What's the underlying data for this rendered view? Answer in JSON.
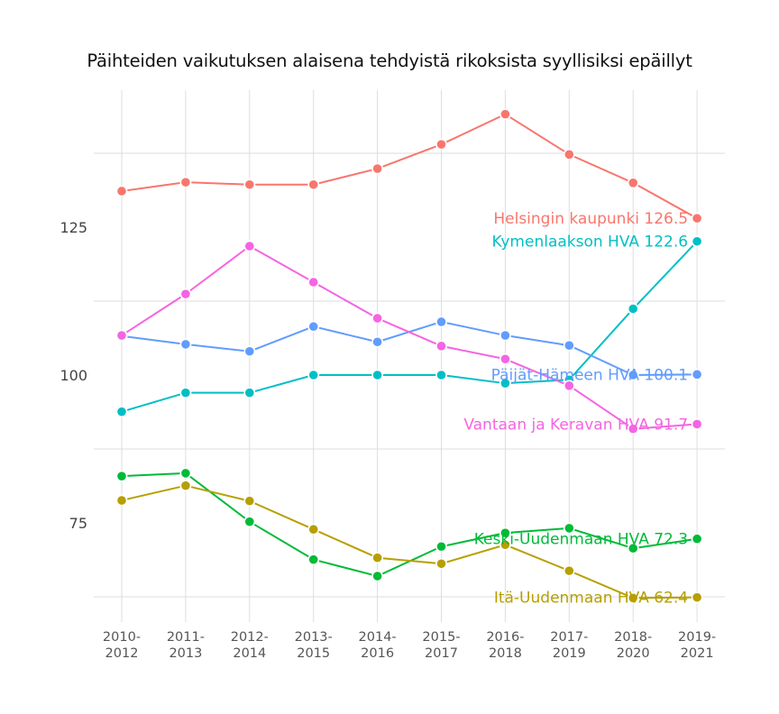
{
  "chart_data": {
    "type": "line",
    "title": "Päihteiden vaikutuksen alaisena tehdyistä rikoksista syyllisiksi epäillyt",
    "xlabel": "",
    "ylabel": "",
    "categories": [
      "2010-2012",
      "2011-2013",
      "2012-2014",
      "2013-2015",
      "2014-2016",
      "2015-2017",
      "2016-2018",
      "2017-2019",
      "2018-2020",
      "2019-2021"
    ],
    "x_tick_labels": [
      [
        "2010-",
        "2012"
      ],
      [
        "2011-",
        "2013"
      ],
      [
        "2012-",
        "2014"
      ],
      [
        "2013-",
        "2015"
      ],
      [
        "2014-",
        "2016"
      ],
      [
        "2015-",
        "2017"
      ],
      [
        "2016-",
        "2018"
      ],
      [
        "2017-",
        "2019"
      ],
      [
        "2018-",
        "2020"
      ],
      [
        "2019-",
        "2021"
      ]
    ],
    "y_ticks": [
      75,
      100,
      125
    ],
    "y_gridlines": [
      62.5,
      87.5,
      112.5,
      137.5
    ],
    "ylim": [
      59,
      150
    ],
    "grid": true,
    "legend_position": "direct labels at line ends",
    "series": [
      {
        "name": "Helsingin kaupunki",
        "color": "#F8766D",
        "end_label": "Helsingin kaupunki 126.5",
        "values": [
          131.1,
          132.6,
          132.2,
          132.2,
          134.9,
          139.0,
          144.1,
          137.3,
          132.5,
          126.5
        ]
      },
      {
        "name": "Kymenlaakson HVA",
        "color": "#00BFC4",
        "end_label": "Kymenlaakson HVA 122.6",
        "values": [
          93.8,
          97.0,
          97.0,
          100.0,
          100.0,
          100.0,
          98.6,
          99.2,
          111.2,
          122.6
        ]
      },
      {
        "name": "Päijät-Hämeen HVA",
        "color": "#619CFF",
        "end_label": "Päijät-Hämeen HVA 100.1",
        "values": [
          106.6,
          105.2,
          104.0,
          108.2,
          105.6,
          109.0,
          106.7,
          105.0,
          100.0,
          100.1
        ]
      },
      {
        "name": "Vantaan ja Keravan HVA",
        "color": "#F564E3",
        "end_label": "Vantaan ja Keravan HVA 91.7",
        "values": [
          106.7,
          113.7,
          121.8,
          115.7,
          109.6,
          104.9,
          102.7,
          98.2,
          90.9,
          91.7
        ]
      },
      {
        "name": "Keski-Uudenmaan HVA",
        "color": "#00BA38",
        "end_label": "Keski-Uudenmaan HVA 72.3",
        "values": [
          82.9,
          83.4,
          75.2,
          68.8,
          66.0,
          71.0,
          73.3,
          74.1,
          70.7,
          72.3
        ]
      },
      {
        "name": "Itä-Uudenmaan HVA",
        "color": "#B79F00",
        "end_label": "Itä-Uudenmaan HVA 62.4",
        "values": [
          78.8,
          81.3,
          78.7,
          73.9,
          69.1,
          68.1,
          71.3,
          66.9,
          62.3,
          62.4
        ]
      }
    ]
  }
}
